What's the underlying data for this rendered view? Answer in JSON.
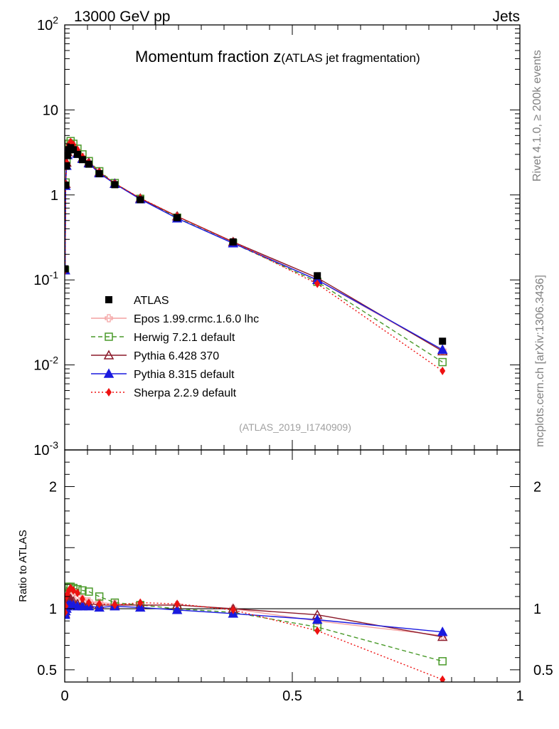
{
  "header": {
    "energy_label": "13000 GeV pp",
    "category_label": "Jets"
  },
  "side_labels": {
    "rivet": "Rivet 4.1.0, ≥ 200k events",
    "site": "mcplots.cern.ch [arXiv:1306.3436]"
  },
  "chart_data": [
    {
      "type": "line",
      "panel": "main",
      "title": "Momentum fraction z",
      "subtitle": "(ATLAS jet fragmentation)",
      "analysis_id": "(ATLAS_2019_I1740909)",
      "yscale": "log",
      "ylim": [
        0.001,
        100
      ],
      "xlim": [
        0,
        1
      ],
      "ytick_labels": [
        "10^-3",
        "10^-2",
        "10^-1",
        "1",
        "10",
        "10^2"
      ],
      "legend_position": "lower-left",
      "x": [
        0.0008,
        0.002,
        0.004,
        0.006,
        0.009,
        0.013,
        0.019,
        0.028,
        0.039,
        0.053,
        0.076,
        0.11,
        0.166,
        0.247,
        0.37,
        0.555,
        0.83
      ],
      "series": [
        {
          "name": "ATLAS",
          "marker": "square-filled",
          "color": "#000000",
          "values": [
            0.135,
            1.3,
            2.2,
            2.9,
            3.4,
            3.6,
            3.4,
            3.0,
            2.6,
            2.3,
            1.78,
            1.32,
            0.88,
            0.54,
            0.28,
            0.112,
            0.019
          ]
        },
        {
          "name": "Epos 1.99.crmc.1.6.0 lhc",
          "marker": "cross-open",
          "color": "#f4a0a0",
          "dash": "solid",
          "values": [
            0.13,
            1.32,
            2.35,
            3.2,
            3.9,
            4.1,
            3.8,
            3.3,
            2.8,
            2.4,
            1.86,
            1.37,
            0.91,
            0.56,
            0.28,
            0.099,
            0.0148
          ]
        },
        {
          "name": "Herwig 7.2.1 default",
          "marker": "square-open",
          "color": "#4a9a2a",
          "dash": "6,4",
          "values": [
            0.13,
            1.4,
            2.6,
            3.4,
            4.0,
            4.3,
            4.0,
            3.5,
            3.0,
            2.5,
            1.9,
            1.38,
            0.9,
            0.54,
            0.27,
            0.095,
            0.0108
          ]
        },
        {
          "name": "Pythia 6.428 370",
          "marker": "triangle-open",
          "color": "#8b1a2a",
          "dash": "solid",
          "values": [
            0.13,
            1.35,
            2.4,
            3.2,
            3.7,
            3.9,
            3.6,
            3.1,
            2.7,
            2.4,
            1.84,
            1.36,
            0.91,
            0.56,
            0.28,
            0.106,
            0.0145
          ]
        },
        {
          "name": "Pythia 8.315 default",
          "marker": "triangle-filled",
          "color": "#1a1adf",
          "dash": "solid",
          "values": [
            0.13,
            1.28,
            2.2,
            2.95,
            3.5,
            3.7,
            3.5,
            3.05,
            2.65,
            2.35,
            1.8,
            1.35,
            0.89,
            0.53,
            0.27,
            0.1,
            0.0151
          ]
        },
        {
          "name": "Sherpa 2.2.9 default",
          "marker": "diamond-filled",
          "color": "#ee1111",
          "dash": "2,3",
          "values": [
            0.13,
            1.32,
            2.4,
            3.2,
            3.9,
            4.2,
            3.9,
            3.4,
            2.8,
            2.4,
            1.85,
            1.36,
            0.92,
            0.56,
            0.28,
            0.09,
            0.0085
          ]
        }
      ]
    },
    {
      "type": "line",
      "panel": "ratio",
      "ylabel": "Ratio to ATLAS",
      "ylim": [
        0.4,
        2.3
      ],
      "xlim": [
        0,
        1
      ],
      "ytick_labels": [
        "0.5",
        "1",
        "2"
      ],
      "xtick_labels": [
        "0",
        "0.5",
        "1"
      ],
      "reference_line": 1,
      "x": [
        0.0008,
        0.002,
        0.004,
        0.006,
        0.009,
        0.013,
        0.019,
        0.028,
        0.039,
        0.053,
        0.076,
        0.11,
        0.166,
        0.247,
        0.37,
        0.555,
        0.83
      ],
      "series": [
        {
          "name": "Epos 1.99.crmc.1.6.0 lhc",
          "values": [
            0.96,
            1.02,
            1.07,
            1.1,
            1.14,
            1.14,
            1.12,
            1.1,
            1.08,
            1.06,
            1.05,
            1.04,
            1.03,
            1.03,
            1.0,
            0.9,
            0.78
          ]
        },
        {
          "name": "Herwig 7.2.1 default",
          "values": [
            0.97,
            1.08,
            1.18,
            1.17,
            1.18,
            1.18,
            1.17,
            1.16,
            1.15,
            1.14,
            1.1,
            1.05,
            1.03,
            1.0,
            0.97,
            0.85,
            0.57
          ]
        },
        {
          "name": "Pythia 6.428 370",
          "values": [
            0.96,
            1.04,
            1.09,
            1.1,
            1.09,
            1.08,
            1.06,
            1.04,
            1.04,
            1.04,
            1.03,
            1.03,
            1.03,
            1.03,
            1.0,
            0.95,
            0.77
          ]
        },
        {
          "name": "Pythia 8.315 default",
          "values": [
            0.95,
            0.98,
            1.0,
            1.02,
            1.03,
            1.03,
            1.03,
            1.02,
            1.02,
            1.02,
            1.01,
            1.02,
            1.01,
            0.99,
            0.96,
            0.91,
            0.81
          ]
        },
        {
          "name": "Sherpa 2.2.9 default",
          "values": [
            0.97,
            1.02,
            1.1,
            1.12,
            1.15,
            1.17,
            1.15,
            1.13,
            1.08,
            1.05,
            1.04,
            1.03,
            1.05,
            1.04,
            0.99,
            0.82,
            0.42
          ]
        }
      ]
    }
  ]
}
